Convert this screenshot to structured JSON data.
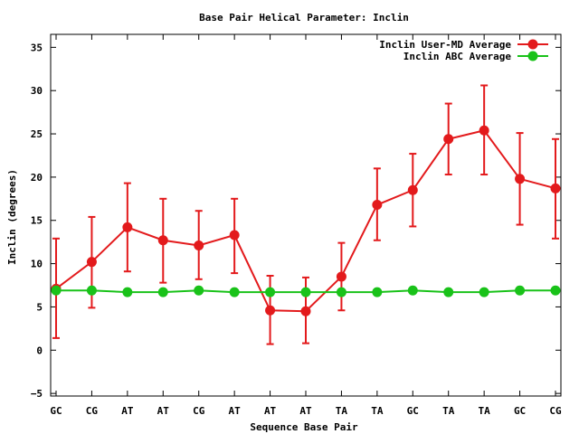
{
  "chart_data": {
    "type": "line",
    "title": "Base Pair Helical Parameter: Inclin",
    "xlabel": "Sequence Base Pair",
    "ylabel": "Inclin (degrees)",
    "categories": [
      "GC",
      "CG",
      "AT",
      "AT",
      "CG",
      "AT",
      "AT",
      "AT",
      "TA",
      "TA",
      "GC",
      "TA",
      "TA",
      "GC",
      "CG"
    ],
    "yticks": [
      -5,
      0,
      5,
      10,
      15,
      20,
      25,
      30,
      35
    ],
    "ylim": [
      -5.3,
      36.5
    ],
    "grid": false,
    "legend": "top-right",
    "series": [
      {
        "name": "Inclin User-MD Average",
        "color": "#e31a1c",
        "values": [
          7.1,
          10.2,
          14.2,
          12.7,
          12.1,
          13.3,
          4.6,
          4.5,
          8.5,
          16.8,
          18.5,
          24.4,
          25.4,
          19.8,
          18.7
        ],
        "err_low": [
          1.4,
          4.9,
          9.1,
          7.8,
          8.2,
          8.9,
          0.7,
          0.8,
          4.6,
          12.7,
          14.3,
          20.3,
          20.3,
          14.5,
          12.9
        ],
        "err_high": [
          12.9,
          15.4,
          19.3,
          17.5,
          16.1,
          17.5,
          8.6,
          8.4,
          12.4,
          21.0,
          22.7,
          28.5,
          30.6,
          25.1,
          24.4
        ]
      },
      {
        "name": "Inclin ABC Average",
        "color": "#19c219",
        "values": [
          6.9,
          6.9,
          6.7,
          6.7,
          6.9,
          6.7,
          6.7,
          6.7,
          6.7,
          6.7,
          6.9,
          6.7,
          6.7,
          6.9,
          6.9
        ]
      }
    ]
  }
}
